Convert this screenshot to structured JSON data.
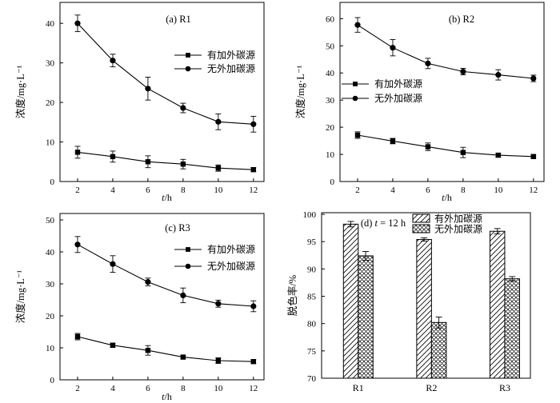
{
  "figure": {
    "background": "#ffffff",
    "ink": "#000000",
    "description": "2x2 panel figure: concentration decay curves for reactors R1-R3 and decolorization-rate bars at t = 12 h"
  },
  "chart_data": [
    {
      "id": "a",
      "type": "line",
      "title": "(a) R1",
      "xlabel": "t/h",
      "ylabel": "浓度/mg·L⁻¹",
      "x": [
        2,
        4,
        6,
        8,
        10,
        12
      ],
      "xticks": [
        2,
        4,
        6,
        8,
        10,
        12
      ],
      "yticks": [
        0,
        10,
        20,
        30,
        40
      ],
      "xlim": [
        1.0,
        12.6
      ],
      "ylim": [
        0,
        45.3
      ],
      "grid": false,
      "legend_pos": "middle-right",
      "series": [
        {
          "name": "有加外碳源",
          "marker": "square",
          "values": [
            7.4,
            6.3,
            5.0,
            4.4,
            3.4,
            3.0
          ],
          "errors": [
            1.5,
            1.4,
            1.5,
            1.2,
            0.8,
            0.5
          ]
        },
        {
          "name": "无外加碳源",
          "marker": "circle",
          "values": [
            40.0,
            30.6,
            23.5,
            18.6,
            15.1,
            14.5
          ],
          "errors": [
            2.1,
            1.6,
            2.9,
            1.2,
            2.0,
            2.0
          ]
        }
      ]
    },
    {
      "id": "b",
      "type": "line",
      "title": "(b) R2",
      "xlabel": "t/h",
      "ylabel": "浓度/mg·L⁻¹",
      "x": [
        2,
        4,
        6,
        8,
        10,
        12
      ],
      "xticks": [
        2,
        4,
        6,
        8,
        10,
        12
      ],
      "yticks": [
        0,
        10,
        20,
        30,
        40,
        50,
        60
      ],
      "xlim": [
        1.0,
        12.6
      ],
      "ylim": [
        0,
        66
      ],
      "grid": false,
      "legend_pos": "middle-left",
      "series": [
        {
          "name": "有加外碳源",
          "marker": "square",
          "values": [
            17.1,
            14.9,
            12.8,
            10.7,
            9.7,
            9.2
          ],
          "errors": [
            1.2,
            1.0,
            1.4,
            1.9,
            0.7,
            0.5
          ]
        },
        {
          "name": "无外加碳源",
          "marker": "circle",
          "values": [
            57.7,
            49.3,
            43.5,
            40.5,
            39.3,
            38.0
          ],
          "errors": [
            2.7,
            3.0,
            1.9,
            1.2,
            1.9,
            1.2
          ]
        }
      ]
    },
    {
      "id": "c",
      "type": "line",
      "title": "(c) R3",
      "xlabel": "t/h",
      "ylabel": "浓度/mg·L⁻¹",
      "x": [
        2,
        4,
        6,
        8,
        10,
        12
      ],
      "xticks": [
        2,
        4,
        6,
        8,
        10,
        12
      ],
      "yticks": [
        0,
        10,
        20,
        30,
        40,
        50
      ],
      "xlim": [
        1.0,
        12.6
      ],
      "ylim": [
        0,
        52
      ],
      "grid": false,
      "legend_pos": "upper-right",
      "series": [
        {
          "name": "有加外碳源",
          "marker": "square",
          "values": [
            13.5,
            10.8,
            9.2,
            7.1,
            6.0,
            5.7
          ],
          "errors": [
            1.0,
            0.7,
            1.5,
            0.6,
            0.9,
            0.6
          ]
        },
        {
          "name": "无外加碳源",
          "marker": "circle",
          "values": [
            42.3,
            36.2,
            30.6,
            26.4,
            23.8,
            23.0
          ],
          "errors": [
            2.5,
            2.6,
            1.2,
            2.3,
            1.1,
            1.7
          ]
        }
      ]
    },
    {
      "id": "d",
      "type": "bar",
      "title": "(d) t = 12 h",
      "xlabel": "",
      "ylabel": "脱色率/%",
      "categories": [
        "R1",
        "R2",
        "R3"
      ],
      "yticks": [
        70,
        75,
        80,
        85,
        90,
        95,
        100
      ],
      "ylim": [
        70,
        100.3
      ],
      "grid": false,
      "legend_pos": "upper-center",
      "series": [
        {
          "name": "有外加碳源",
          "hatch": "diagonal",
          "values": [
            98.2,
            95.4,
            96.9
          ],
          "errors": [
            0.5,
            0.3,
            0.5
          ]
        },
        {
          "name": "无外加碳源",
          "hatch": "cross",
          "values": [
            92.4,
            80.2,
            88.2
          ],
          "errors": [
            0.8,
            1.0,
            0.4
          ]
        }
      ]
    }
  ]
}
